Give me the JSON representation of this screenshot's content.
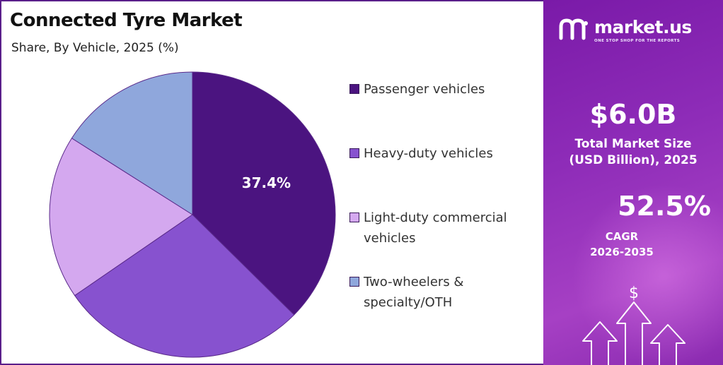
{
  "header": {
    "title": "Connected Tyre Market",
    "subtitle": "Share, By Vehicle, 2025 (%)"
  },
  "chart_data": {
    "type": "pie",
    "categories": [
      "Passenger vehicles",
      "Heavy-duty vehicles",
      "Light-duty commercial vehicles",
      "Two-wheelers & specialty/OTH"
    ],
    "values": [
      37.4,
      28.0,
      18.6,
      16.0
    ],
    "colors": [
      "#4b1480",
      "#8752cf",
      "#d4a8ef",
      "#8fa7dc"
    ],
    "data_labels": [
      "37.4%",
      "",
      "",
      ""
    ],
    "legend_position": "right"
  },
  "legend": {
    "items": [
      {
        "label_lines": [
          "Passenger vehicles"
        ],
        "color": "#4b1480"
      },
      {
        "label_lines": [
          "Heavy-duty vehicles"
        ],
        "color": "#8752cf"
      },
      {
        "label_lines": [
          "Light-duty commercial",
          "vehicles"
        ],
        "color": "#d4a8ef"
      },
      {
        "label_lines": [
          "Two-wheelers &",
          "specialty/OTH"
        ],
        "color": "#8fa7dc"
      }
    ]
  },
  "sidebar": {
    "brand_name": "market.us",
    "brand_tagline": "ONE STOP SHOP FOR THE REPORTS",
    "market_size_value": "$6.0B",
    "market_size_label_1": "Total Market Size",
    "market_size_label_2": "(USD Billion), 2025",
    "cagr_value": "52.5%",
    "cagr_label_1": "CAGR",
    "cagr_label_2": "2026-2035",
    "dollar_symbol": "$",
    "accent_color": "#8e2cb8"
  }
}
